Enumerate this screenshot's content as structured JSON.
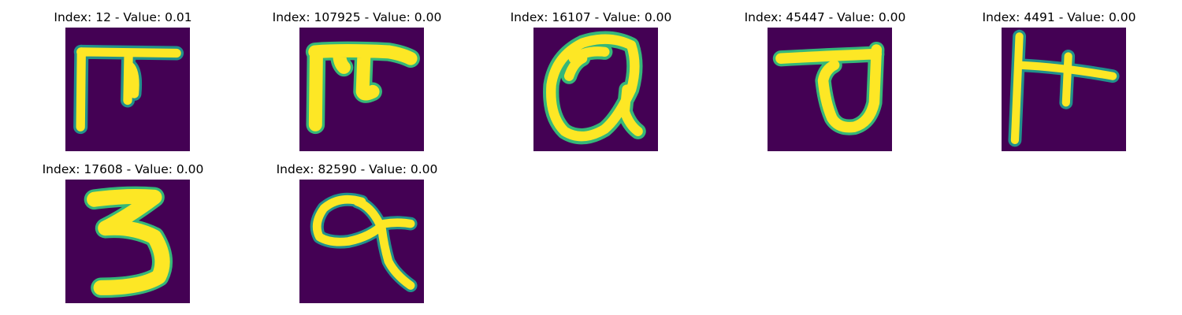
{
  "panels": [
    {
      "title": "Index: 12 - Value: 0.01",
      "glyph": "Devanagari letter resembling 'na' with vertical bar and right stroke"
    },
    {
      "title": "Index: 107925 - Value: 0.00",
      "glyph": "Devanagari letter resembling 'na' thick strokes"
    },
    {
      "title": "Index: 16107 - Value: 0.00",
      "glyph": "Devanagari digit/letter resembling 'q' loop"
    },
    {
      "title": "Index: 45447 - Value: 0.00",
      "glyph": "Devanagari letter resembling 'v' with top bar"
    },
    {
      "title": "Index: 4491 - Value: 0.00",
      "glyph": "Devanagari letter with tall vertical bar and cross"
    },
    {
      "title": "Index: 17608 - Value: 0.00",
      "glyph": "digit 3"
    },
    {
      "title": "Index: 82590 - Value: 0.00",
      "glyph": "Devanagari letter resembling 'q' loop with tail"
    }
  ],
  "colors": {
    "background": "#440154",
    "stroke": "#fde725",
    "edge": "#35b779",
    "edge_dark": "#21918c"
  }
}
